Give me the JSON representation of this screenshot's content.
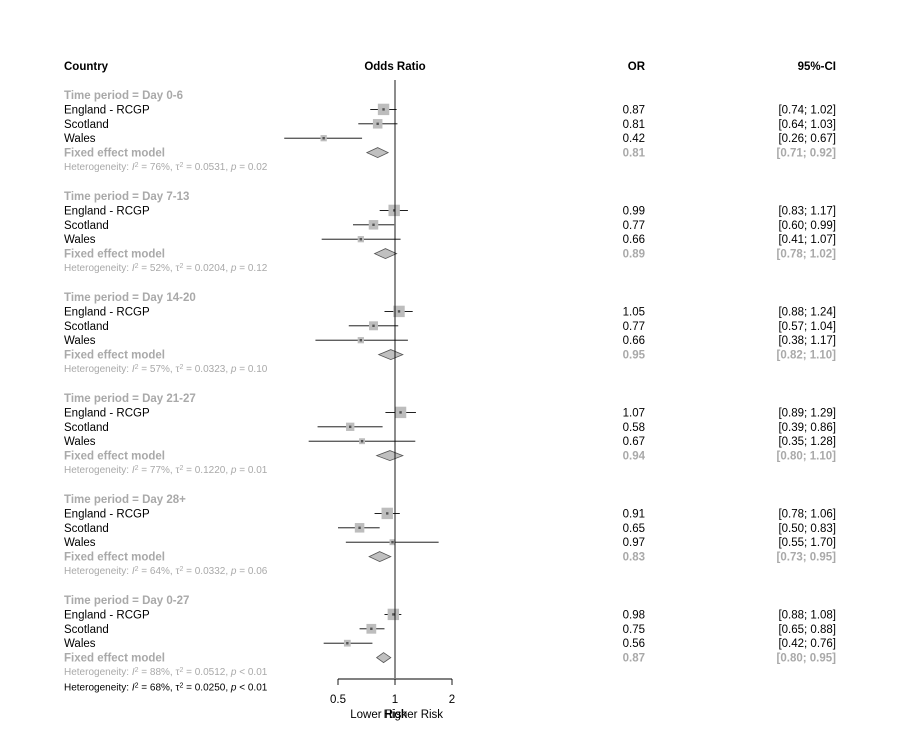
{
  "headers": {
    "country": "Country",
    "plot": "Odds Ratio",
    "or": "OR",
    "ci": "95%-CI"
  },
  "chart_data": {
    "type": "forest",
    "x_scale": "log",
    "xlim": [
      0.5,
      2
    ],
    "x_ticks": [
      0.5,
      1,
      2
    ],
    "x_tick_labels": [
      "0.5",
      "1",
      "2"
    ],
    "x_label_left": "Lower Risk",
    "x_label_right": "Higher Risk",
    "reference_line": 1,
    "colors": {
      "box": "#bdbdbd",
      "diamond": "#c0c0c0",
      "summary_text": "#a9a9a9",
      "line": "#000000"
    },
    "groups": [
      {
        "label": "Time period = Day 0-6",
        "studies": [
          {
            "name": "England - RCGP",
            "or": 0.87,
            "lower": 0.74,
            "upper": 1.02,
            "or_text": "0.87",
            "ci_text": "[0.74;  1.02]",
            "weight": 1.0
          },
          {
            "name": "Scotland",
            "or": 0.81,
            "lower": 0.64,
            "upper": 1.03,
            "or_text": "0.81",
            "ci_text": "[0.64;  1.03]",
            "weight": 0.6
          },
          {
            "name": "Wales",
            "or": 0.42,
            "lower": 0.26,
            "upper": 0.67,
            "or_text": "0.42",
            "ci_text": "[0.26;  0.67]",
            "weight": 0.15
          }
        ],
        "summary": {
          "name": "Fixed effect model",
          "or": 0.81,
          "lower": 0.71,
          "upper": 0.92,
          "or_text": "0.81",
          "ci_text": "[0.71;  0.92]"
        },
        "heterogeneity": {
          "label": "Heterogeneity: ",
          "i2": "76%",
          "tau2": "0.0531",
          "p": "= 0.02"
        }
      },
      {
        "label": "Time period = Day 7-13",
        "studies": [
          {
            "name": "England - RCGP",
            "or": 0.99,
            "lower": 0.83,
            "upper": 1.17,
            "or_text": "0.99",
            "ci_text": "[0.83;  1.17]",
            "weight": 1.0
          },
          {
            "name": "Scotland",
            "or": 0.77,
            "lower": 0.6,
            "upper": 0.99,
            "or_text": "0.77",
            "ci_text": "[0.60;  0.99]",
            "weight": 0.6
          },
          {
            "name": "Wales",
            "or": 0.66,
            "lower": 0.41,
            "upper": 1.07,
            "or_text": "0.66",
            "ci_text": "[0.41;  1.07]",
            "weight": 0.15
          }
        ],
        "summary": {
          "name": "Fixed effect model",
          "or": 0.89,
          "lower": 0.78,
          "upper": 1.02,
          "or_text": "0.89",
          "ci_text": "[0.78;  1.02]"
        },
        "heterogeneity": {
          "label": "Heterogeneity: ",
          "i2": "52%",
          "tau2": "0.0204",
          "p": "= 0.12"
        }
      },
      {
        "label": "Time period = Day 14-20",
        "studies": [
          {
            "name": "England - RCGP",
            "or": 1.05,
            "lower": 0.88,
            "upper": 1.24,
            "or_text": "1.05",
            "ci_text": "[0.88;  1.24]",
            "weight": 1.0
          },
          {
            "name": "Scotland",
            "or": 0.77,
            "lower": 0.57,
            "upper": 1.04,
            "or_text": "0.77",
            "ci_text": "[0.57;  1.04]",
            "weight": 0.5
          },
          {
            "name": "Wales",
            "or": 0.66,
            "lower": 0.38,
            "upper": 1.17,
            "or_text": "0.66",
            "ci_text": "[0.38;  1.17]",
            "weight": 0.15
          }
        ],
        "summary": {
          "name": "Fixed effect model",
          "or": 0.95,
          "lower": 0.82,
          "upper": 1.1,
          "or_text": "0.95",
          "ci_text": "[0.82;  1.10]"
        },
        "heterogeneity": {
          "label": "Heterogeneity: ",
          "i2": "57%",
          "tau2": "0.0323",
          "p": "= 0.10"
        }
      },
      {
        "label": "Time period = Day 21-27",
        "studies": [
          {
            "name": "England - RCGP",
            "or": 1.07,
            "lower": 0.89,
            "upper": 1.29,
            "or_text": "1.07",
            "ci_text": "[0.89;  1.29]",
            "weight": 1.0
          },
          {
            "name": "Scotland",
            "or": 0.58,
            "lower": 0.39,
            "upper": 0.86,
            "or_text": "0.58",
            "ci_text": "[0.39;  0.86]",
            "weight": 0.4
          },
          {
            "name": "Wales",
            "or": 0.67,
            "lower": 0.35,
            "upper": 1.28,
            "or_text": "0.67",
            "ci_text": "[0.35;  1.28]",
            "weight": 0.12
          }
        ],
        "summary": {
          "name": "Fixed effect model",
          "or": 0.94,
          "lower": 0.8,
          "upper": 1.1,
          "or_text": "0.94",
          "ci_text": "[0.80;  1.10]"
        },
        "heterogeneity": {
          "label": "Heterogeneity: ",
          "i2": "77%",
          "tau2": "0.1220",
          "p": "= 0.01"
        }
      },
      {
        "label": "Time period = Day 28+",
        "studies": [
          {
            "name": "England - RCGP",
            "or": 0.91,
            "lower": 0.78,
            "upper": 1.06,
            "or_text": "0.91",
            "ci_text": "[0.78;  1.06]",
            "weight": 1.0
          },
          {
            "name": "Scotland",
            "or": 0.65,
            "lower": 0.5,
            "upper": 0.83,
            "or_text": "0.65",
            "ci_text": "[0.50;  0.83]",
            "weight": 0.6
          },
          {
            "name": "Wales",
            "or": 0.97,
            "lower": 0.55,
            "upper": 1.7,
            "or_text": "0.97",
            "ci_text": "[0.55;  1.70]",
            "weight": 0.12
          }
        ],
        "summary": {
          "name": "Fixed effect model",
          "or": 0.83,
          "lower": 0.73,
          "upper": 0.95,
          "or_text": "0.83",
          "ci_text": "[0.73;  0.95]"
        },
        "heterogeneity": {
          "label": "Heterogeneity: ",
          "i2": "64%",
          "tau2": "0.0332",
          "p": "= 0.06"
        }
      },
      {
        "label": "Time period = Day 0-27",
        "studies": [
          {
            "name": "England - RCGP",
            "or": 0.98,
            "lower": 0.88,
            "upper": 1.08,
            "or_text": "0.98",
            "ci_text": "[0.88;  1.08]",
            "weight": 1.0
          },
          {
            "name": "Scotland",
            "or": 0.75,
            "lower": 0.65,
            "upper": 0.88,
            "or_text": "0.75",
            "ci_text": "[0.65;  0.88]",
            "weight": 0.65
          },
          {
            "name": "Wales",
            "or": 0.56,
            "lower": 0.42,
            "upper": 0.76,
            "or_text": "0.56",
            "ci_text": "[0.42;  0.76]",
            "weight": 0.2
          }
        ],
        "summary": {
          "name": "Fixed effect model",
          "or": 0.87,
          "lower": 0.8,
          "upper": 0.95,
          "or_text": "0.87",
          "ci_text": "[0.80;  0.95]"
        },
        "heterogeneity": {
          "label": "Heterogeneity: ",
          "i2": "88%",
          "tau2": "0.0512",
          "p": "< 0.01"
        }
      }
    ],
    "overall_heterogeneity": {
      "label": "Heterogeneity: ",
      "i2": "68%",
      "tau2": "0.0250",
      "p": "< 0.01"
    }
  }
}
